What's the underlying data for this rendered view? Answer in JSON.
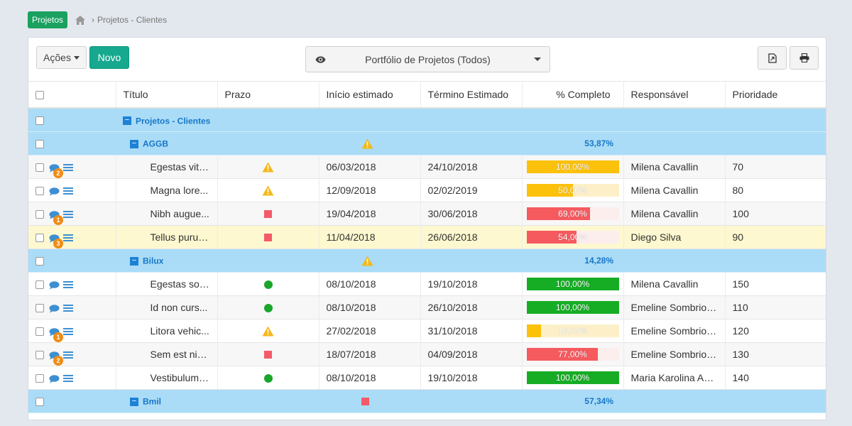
{
  "breadcrumb": {
    "badge": "Projetos",
    "separator": "›",
    "current": "Projetos - Clientes"
  },
  "toolbar": {
    "acoes_label": "Ações",
    "novo_label": "Novo",
    "portfolio_label": "Portfólio de Projetos (Todos)"
  },
  "columns": {
    "titulo": "Título",
    "prazo": "Prazo",
    "inicio": "Início estimado",
    "termino": "Término Estimado",
    "completo": "% Completo",
    "responsavel": "Responsável",
    "prioridade": "Prioridade"
  },
  "root_group": {
    "title": "Projetos - Clientes"
  },
  "groups": [
    {
      "title": "AGGB",
      "status": "warning",
      "percent": "53,87%"
    },
    {
      "title": "Bilux",
      "status": "warning",
      "percent": "14,28%"
    },
    {
      "title": "Bmil",
      "status": "late",
      "percent": "57,34%"
    }
  ],
  "rows": [
    {
      "title": "Egestas vita...",
      "badge": "2",
      "status": "warning",
      "start": "06/03/2018",
      "end": "24/10/2018",
      "progress": 100,
      "progress_label": "100,00%",
      "bar_color": "#fcc10b",
      "track_color": "#fdf0c8",
      "owner": "Milena Cavallin",
      "priority": "70"
    },
    {
      "title": "Magna lore...",
      "badge": "",
      "status": "warning",
      "start": "12/09/2018",
      "end": "02/02/2019",
      "progress": 50,
      "progress_label": "50,00%",
      "bar_color": "#fcc10b",
      "track_color": "#fdf0c8",
      "owner": "Milena Cavallin",
      "priority": "80"
    },
    {
      "title": "Nibh augue...",
      "badge": "1",
      "status": "late",
      "start": "19/04/2018",
      "end": "30/06/2018",
      "progress": 69,
      "progress_label": "69,00%",
      "bar_color": "#f55a5f",
      "track_color": "#fdeeee",
      "owner": "Milena Cavallin",
      "priority": "100"
    },
    {
      "title": "Tellus purus...",
      "badge": "3",
      "status": "late",
      "start": "11/04/2018",
      "end": "26/06/2018",
      "progress": 54,
      "progress_label": "54,00%",
      "bar_color": "#f55a5f",
      "track_color": "#fdeeee",
      "owner": "Diego Silva",
      "priority": "90"
    },
    {
      "title": "Egestas solli...",
      "badge": "",
      "status": "ok",
      "start": "08/10/2018",
      "end": "19/10/2018",
      "progress": 100,
      "progress_label": "100,00%",
      "bar_color": "#16ad24",
      "track_color": "#e3f5e5",
      "owner": "Milena Cavallin",
      "priority": "150"
    },
    {
      "title": "Id non curs...",
      "badge": "",
      "status": "ok",
      "start": "08/10/2018",
      "end": "26/10/2018",
      "progress": 100,
      "progress_label": "100,00%",
      "bar_color": "#16ad24",
      "track_color": "#e3f5e5",
      "owner": "Emeline Sombrio ...",
      "priority": "110"
    },
    {
      "title": "Litora vehic...",
      "badge": "1",
      "status": "warning",
      "start": "27/02/2018",
      "end": "31/10/2018",
      "progress": 16,
      "progress_label": "16,00%",
      "bar_color": "#fcc10b",
      "track_color": "#fdf0c8",
      "owner": "Emeline Sombrio ...",
      "priority": "120"
    },
    {
      "title": "Sem est nisl...",
      "badge": "2",
      "status": "late",
      "start": "18/07/2018",
      "end": "04/09/2018",
      "progress": 77,
      "progress_label": "77,00%",
      "bar_color": "#f55a5f",
      "track_color": "#fdeeee",
      "owner": "Emeline Sombrio ...",
      "priority": "130"
    },
    {
      "title": "Vestibulum ...",
      "badge": "",
      "status": "ok",
      "start": "08/10/2018",
      "end": "19/10/2018",
      "progress": 100,
      "progress_label": "100,00%",
      "bar_color": "#16ad24",
      "track_color": "#e3f5e5",
      "owner": "Maria Karolina Ag...",
      "priority": "140"
    }
  ],
  "colors": {
    "group_row": "#aadcf7",
    "highlight_row": "#fdf8cf",
    "accent_green": "#17a98f",
    "badge_orange": "#f08c16"
  },
  "icons": {
    "home": "home-icon",
    "eye": "eye-icon",
    "export": "export-file-icon",
    "print": "printer-icon",
    "comment": "comment-icon",
    "details": "list-icon",
    "warning": "warning-icon"
  }
}
